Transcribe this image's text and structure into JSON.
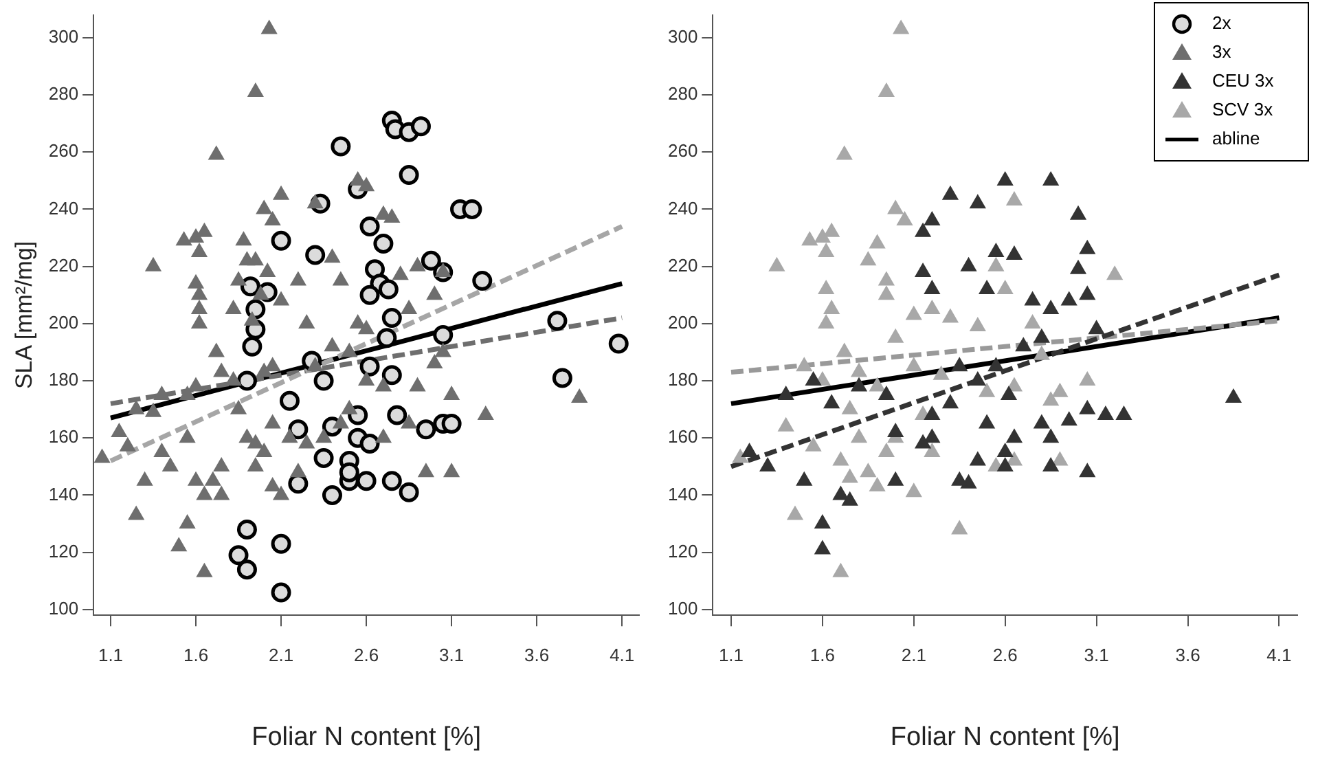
{
  "chart_data": [
    {
      "type": "scatter",
      "xlabel": "Foliar N content [%]",
      "ylabel": "SLA [mm²/mg]",
      "xlim": [
        1.0,
        4.2
      ],
      "ylim": [
        98,
        308
      ],
      "xticks": [
        1.1,
        1.6,
        2.1,
        2.6,
        3.1,
        3.6,
        4.1
      ],
      "yticks": [
        100,
        120,
        140,
        160,
        180,
        200,
        220,
        240,
        260,
        280,
        300
      ],
      "legend": false,
      "series": [
        {
          "type": "scatter",
          "marker": "triangle",
          "color": "#6e6e6e",
          "x": [
            2.03,
            1.95,
            1.72,
            1.6,
            1.65,
            1.53,
            1.62,
            1.35,
            1.6,
            1.62,
            1.62,
            1.62,
            1.82,
            1.85,
            1.9,
            1.88,
            1.95,
            1.93,
            2.0,
            2.1,
            2.05,
            2.02,
            1.98,
            2.1,
            2.2,
            2.25,
            2.3,
            2.4,
            2.45,
            2.55,
            2.6,
            2.7,
            2.75,
            2.8,
            2.85,
            2.9,
            3.05,
            3.0,
            2.55,
            2.6,
            2.4,
            2.5,
            2.3,
            2.05,
            2.0,
            1.82,
            1.72,
            1.75,
            1.6,
            1.55,
            1.4,
            1.35,
            1.25,
            1.15,
            1.05,
            1.2,
            1.4,
            1.55,
            1.45,
            1.6,
            1.7,
            1.75,
            1.9,
            1.85,
            2.05,
            2.15,
            2.0,
            1.95,
            2.1,
            2.2,
            2.35,
            2.45,
            2.6,
            2.7,
            2.9,
            3.1,
            3.3,
            3.0,
            3.05,
            3.85,
            2.95,
            3.1,
            1.3,
            1.25,
            1.55,
            1.5,
            1.65,
            1.75,
            1.65,
            2.05,
            1.95,
            2.25,
            2.5,
            2.7,
            2.85
          ],
          "values": [
            303,
            281,
            259,
            230,
            232,
            229,
            225,
            220,
            214,
            210,
            205,
            200,
            205,
            215,
            222,
            229,
            222,
            201,
            240,
            245,
            236,
            218,
            210,
            208,
            215,
            200,
            242,
            223,
            215,
            250,
            248,
            238,
            237,
            217,
            205,
            220,
            218,
            210,
            200,
            198,
            192,
            190,
            185,
            185,
            183,
            180,
            190,
            183,
            178,
            175,
            175,
            169,
            170,
            162,
            153,
            157,
            155,
            160,
            150,
            145,
            145,
            150,
            160,
            170,
            165,
            160,
            155,
            150,
            140,
            148,
            160,
            165,
            180,
            178,
            178,
            175,
            168,
            186,
            190,
            174,
            148,
            148,
            145,
            133,
            130,
            122,
            113,
            140,
            140,
            143,
            158,
            158,
            170,
            160,
            165
          ]
        },
        {
          "type": "scatter",
          "marker": "circle",
          "color": "#dcdcdc",
          "x": [
            2.75,
            2.77,
            2.85,
            2.92,
            2.85,
            2.45,
            2.55,
            2.62,
            2.98,
            2.7,
            2.1,
            2.3,
            2.33,
            2.02,
            1.92,
            1.95,
            1.95,
            1.93,
            2.65,
            2.68,
            2.73,
            2.62,
            2.75,
            3.05,
            3.15,
            3.22,
            3.28,
            2.72,
            3.05,
            1.9,
            2.15,
            2.28,
            2.35,
            2.62,
            2.75,
            2.78,
            2.55,
            2.4,
            2.2,
            2.55,
            2.5,
            2.62,
            2.5,
            2.2,
            2.4,
            2.6,
            2.75,
            2.85,
            2.95,
            3.05,
            3.72,
            3.75,
            4.08,
            1.9,
            1.85,
            1.9,
            2.1,
            2.1,
            3.1,
            2.5,
            2.35
          ],
          "values": [
            271,
            268,
            267,
            269,
            252,
            262,
            247,
            234,
            222,
            228,
            229,
            224,
            242,
            211,
            213,
            205,
            198,
            192,
            219,
            214,
            212,
            210,
            202,
            218,
            240,
            240,
            215,
            195,
            196,
            180,
            173,
            187,
            180,
            185,
            182,
            168,
            168,
            164,
            163,
            160,
            152,
            158,
            145,
            144,
            140,
            145,
            145,
            141,
            163,
            165,
            201,
            181,
            193,
            128,
            119,
            114,
            123,
            106,
            165,
            148,
            153
          ]
        },
        {
          "type": "line",
          "line_style": "dashed",
          "color": "#a6a6a6",
          "x": [
            1.1,
            4.1
          ],
          "values": [
            152,
            234
          ]
        },
        {
          "type": "line",
          "line_style": "dashed",
          "color": "#6e6e6e",
          "x": [
            1.1,
            4.1
          ],
          "values": [
            172,
            202
          ]
        },
        {
          "type": "line",
          "line_style": "solid",
          "color": "#000000",
          "x": [
            1.1,
            4.1
          ],
          "values": [
            167,
            214
          ]
        }
      ]
    },
    {
      "type": "scatter",
      "xlabel": "Foliar N content [%]",
      "xlim": [
        1.0,
        4.2
      ],
      "ylim": [
        98,
        308
      ],
      "xticks": [
        1.1,
        1.6,
        2.1,
        2.6,
        3.1,
        3.6,
        4.1
      ],
      "yticks": [
        100,
        120,
        140,
        160,
        180,
        200,
        220,
        240,
        260,
        280,
        300
      ],
      "legend": "top right",
      "series": [
        {
          "name": "2x",
          "type": "scatter",
          "marker": "circle",
          "color": "#dcdcdc"
        },
        {
          "name": "3x",
          "type": "scatter",
          "marker": "triangle",
          "color": "#6e6e6e"
        },
        {
          "name": "CEU 3x",
          "type": "scatter",
          "marker": "triangle",
          "color": "#333333",
          "x": [
            2.85,
            3.0,
            2.6,
            2.3,
            2.45,
            2.2,
            2.15,
            2.55,
            2.65,
            2.4,
            2.5,
            2.15,
            2.2,
            3.05,
            3.0,
            2.75,
            2.85,
            2.95,
            3.05,
            3.1,
            2.8,
            2.7,
            2.35,
            2.45,
            2.55,
            2.62,
            2.3,
            2.2,
            2.5,
            2.65,
            2.8,
            2.85,
            2.95,
            3.05,
            3.15,
            3.25,
            3.85,
            3.05,
            2.85,
            2.6,
            2.4,
            2.2,
            2.0,
            2.15,
            1.95,
            1.8,
            1.65,
            1.55,
            1.4,
            1.2,
            1.3,
            1.5,
            1.7,
            1.75,
            1.6,
            1.6,
            2.0,
            2.35,
            2.45,
            2.6
          ],
          "values": [
            250,
            238,
            250,
            245,
            242,
            236,
            232,
            225,
            224,
            220,
            212,
            218,
            212,
            226,
            219,
            208,
            205,
            208,
            210,
            198,
            195,
            192,
            185,
            180,
            185,
            175,
            172,
            168,
            165,
            160,
            165,
            160,
            166,
            170,
            168,
            168,
            174,
            148,
            150,
            150,
            144,
            160,
            162,
            158,
            175,
            178,
            172,
            180,
            175,
            155,
            150,
            145,
            140,
            138,
            130,
            121,
            145,
            145,
            152,
            155
          ]
        },
        {
          "name": "SCV 3x",
          "type": "scatter",
          "marker": "triangle",
          "color": "#a8a8a8",
          "x": [
            2.03,
            1.95,
            1.72,
            1.6,
            1.65,
            1.53,
            1.62,
            1.35,
            1.62,
            1.65,
            1.62,
            1.85,
            1.9,
            1.95,
            2.0,
            2.05,
            1.95,
            2.1,
            2.0,
            2.2,
            2.65,
            2.55,
            2.6,
            3.2,
            2.75,
            2.8,
            2.45,
            2.3,
            1.5,
            1.72,
            1.6,
            1.8,
            2.1,
            2.25,
            2.5,
            2.65,
            2.9,
            2.85,
            3.05,
            1.75,
            1.9,
            2.15,
            1.4,
            1.55,
            1.8,
            2.0,
            2.2,
            1.7,
            1.85,
            1.9,
            1.75,
            2.55,
            2.65,
            2.9,
            2.1,
            2.35,
            1.45,
            1.15,
            1.7,
            1.95
          ],
          "values": [
            303,
            281,
            259,
            230,
            232,
            229,
            225,
            220,
            212,
            205,
            200,
            222,
            228,
            215,
            240,
            236,
            210,
            203,
            195,
            205,
            243,
            220,
            212,
            217,
            200,
            189,
            199,
            202,
            185,
            190,
            180,
            183,
            185,
            182,
            176,
            178,
            176,
            173,
            180,
            170,
            178,
            168,
            164,
            157,
            160,
            160,
            155,
            152,
            148,
            143,
            146,
            150,
            152,
            152,
            141,
            128,
            133,
            153,
            113,
            155
          ]
        },
        {
          "type": "line",
          "line_style": "dashed",
          "color": "#333333",
          "x": [
            1.1,
            4.1
          ],
          "values": [
            150,
            217
          ]
        },
        {
          "type": "line",
          "line_style": "dashed",
          "color": "#999999",
          "x": [
            1.1,
            4.1
          ],
          "values": [
            183,
            201
          ]
        },
        {
          "name": "abline",
          "type": "line",
          "line_style": "solid",
          "color": "#000000",
          "x": [
            1.1,
            4.1
          ],
          "values": [
            172,
            202
          ]
        }
      ]
    }
  ]
}
